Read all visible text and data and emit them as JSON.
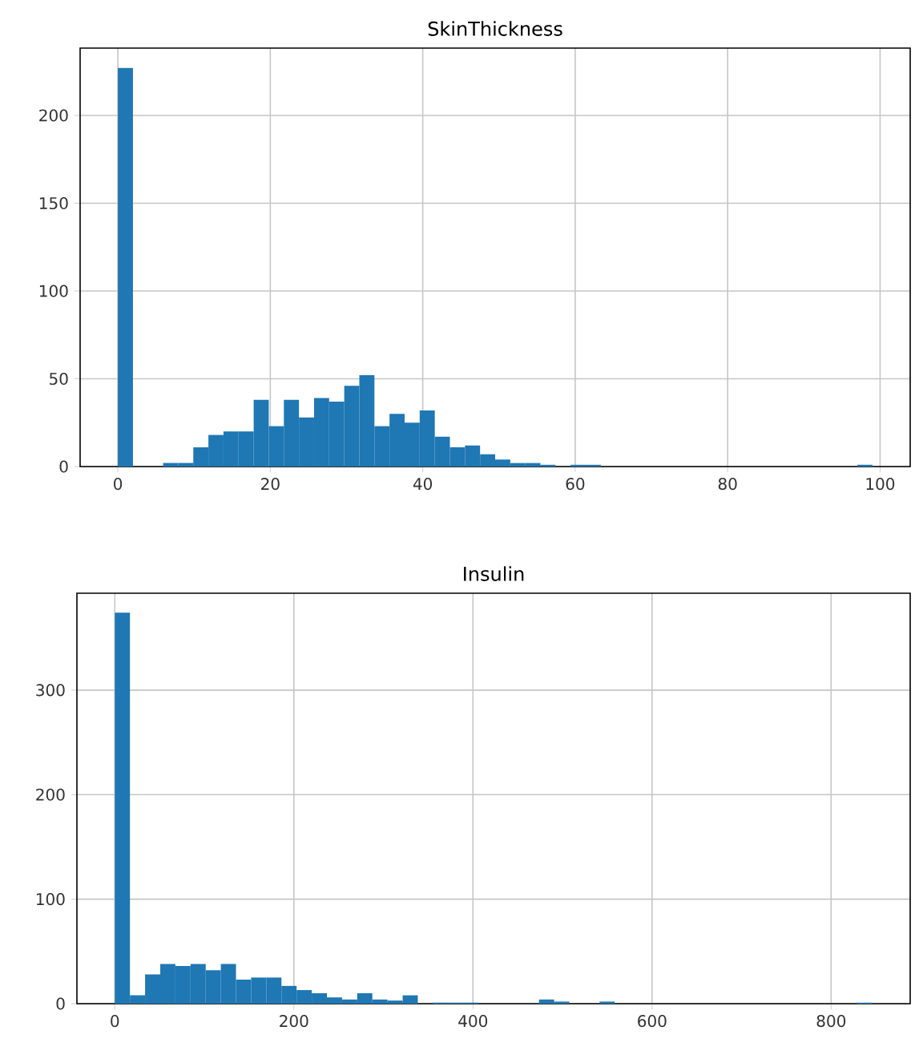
{
  "chart_data": [
    {
      "type": "histogram",
      "title": "SkinThickness",
      "color": "#1f77b4",
      "grid": true,
      "bins": [
        0,
        1.98,
        3.96,
        5.94,
        7.92,
        9.9,
        11.88,
        13.86,
        15.84,
        17.82,
        19.8,
        21.78,
        23.76,
        25.74,
        27.72,
        29.7,
        31.68,
        33.66,
        35.64,
        37.62,
        39.6,
        41.58,
        43.56,
        45.54,
        47.52,
        49.5,
        51.48,
        53.46,
        55.44,
        57.42,
        59.4,
        61.38,
        63.36,
        65.34,
        67.32,
        69.3,
        71.28,
        73.26,
        75.24,
        77.22,
        79.2,
        81.18,
        83.16,
        85.14,
        87.12,
        89.1,
        91.08,
        93.06,
        95.04,
        97.02,
        99
      ],
      "values": [
        227,
        0,
        0,
        2,
        2,
        11,
        18,
        20,
        20,
        38,
        23,
        38,
        28,
        39,
        37,
        46,
        52,
        23,
        30,
        25,
        32,
        17,
        11,
        12,
        7,
        4,
        2,
        2,
        1,
        0,
        1,
        1,
        0,
        0,
        0,
        0,
        0,
        0,
        0,
        0,
        0,
        0,
        0,
        0,
        0,
        0,
        0,
        0,
        0,
        1
      ],
      "xlim": [
        -4.95,
        103.95
      ],
      "ylim": [
        0,
        238.35
      ],
      "xticks": [
        0,
        20,
        40,
        60,
        80,
        100
      ],
      "yticks": [
        0,
        50,
        100,
        150,
        200
      ]
    },
    {
      "type": "histogram",
      "title": "Insulin",
      "color": "#1f77b4",
      "grid": true,
      "bins": [
        0,
        16.92,
        33.84,
        50.76,
        67.68,
        84.6,
        101.52,
        118.44,
        135.36,
        152.28,
        169.2,
        186.12,
        203.04,
        219.96,
        236.88,
        253.8,
        270.72,
        287.64,
        304.56,
        321.48,
        338.4,
        355.32,
        372.24,
        389.16,
        406.08,
        423,
        439.92,
        456.84,
        473.76,
        490.68,
        507.6,
        524.52,
        541.44,
        558.36,
        575.28,
        592.2,
        609.12,
        626.04,
        642.96,
        659.88,
        676.8,
        693.72,
        710.64,
        727.56,
        744.48,
        761.4,
        778.32,
        795.24,
        812.16,
        829.08,
        846
      ],
      "values": [
        374,
        8,
        28,
        38,
        36,
        38,
        32,
        38,
        23,
        25,
        25,
        17,
        13,
        10,
        6,
        4,
        10,
        4,
        3,
        8,
        0,
        1,
        1,
        1,
        0,
        0,
        0,
        0,
        4,
        2,
        0,
        0,
        2,
        0,
        0,
        0,
        0,
        0,
        0,
        0,
        0,
        0,
        0,
        0,
        0,
        0,
        0,
        0,
        0,
        1
      ],
      "xlim": [
        -42.3,
        888.3
      ],
      "ylim": [
        0,
        392.7
      ],
      "xticks": [
        0,
        200,
        400,
        600,
        800
      ],
      "yticks": [
        0,
        100,
        200,
        300
      ]
    }
  ]
}
